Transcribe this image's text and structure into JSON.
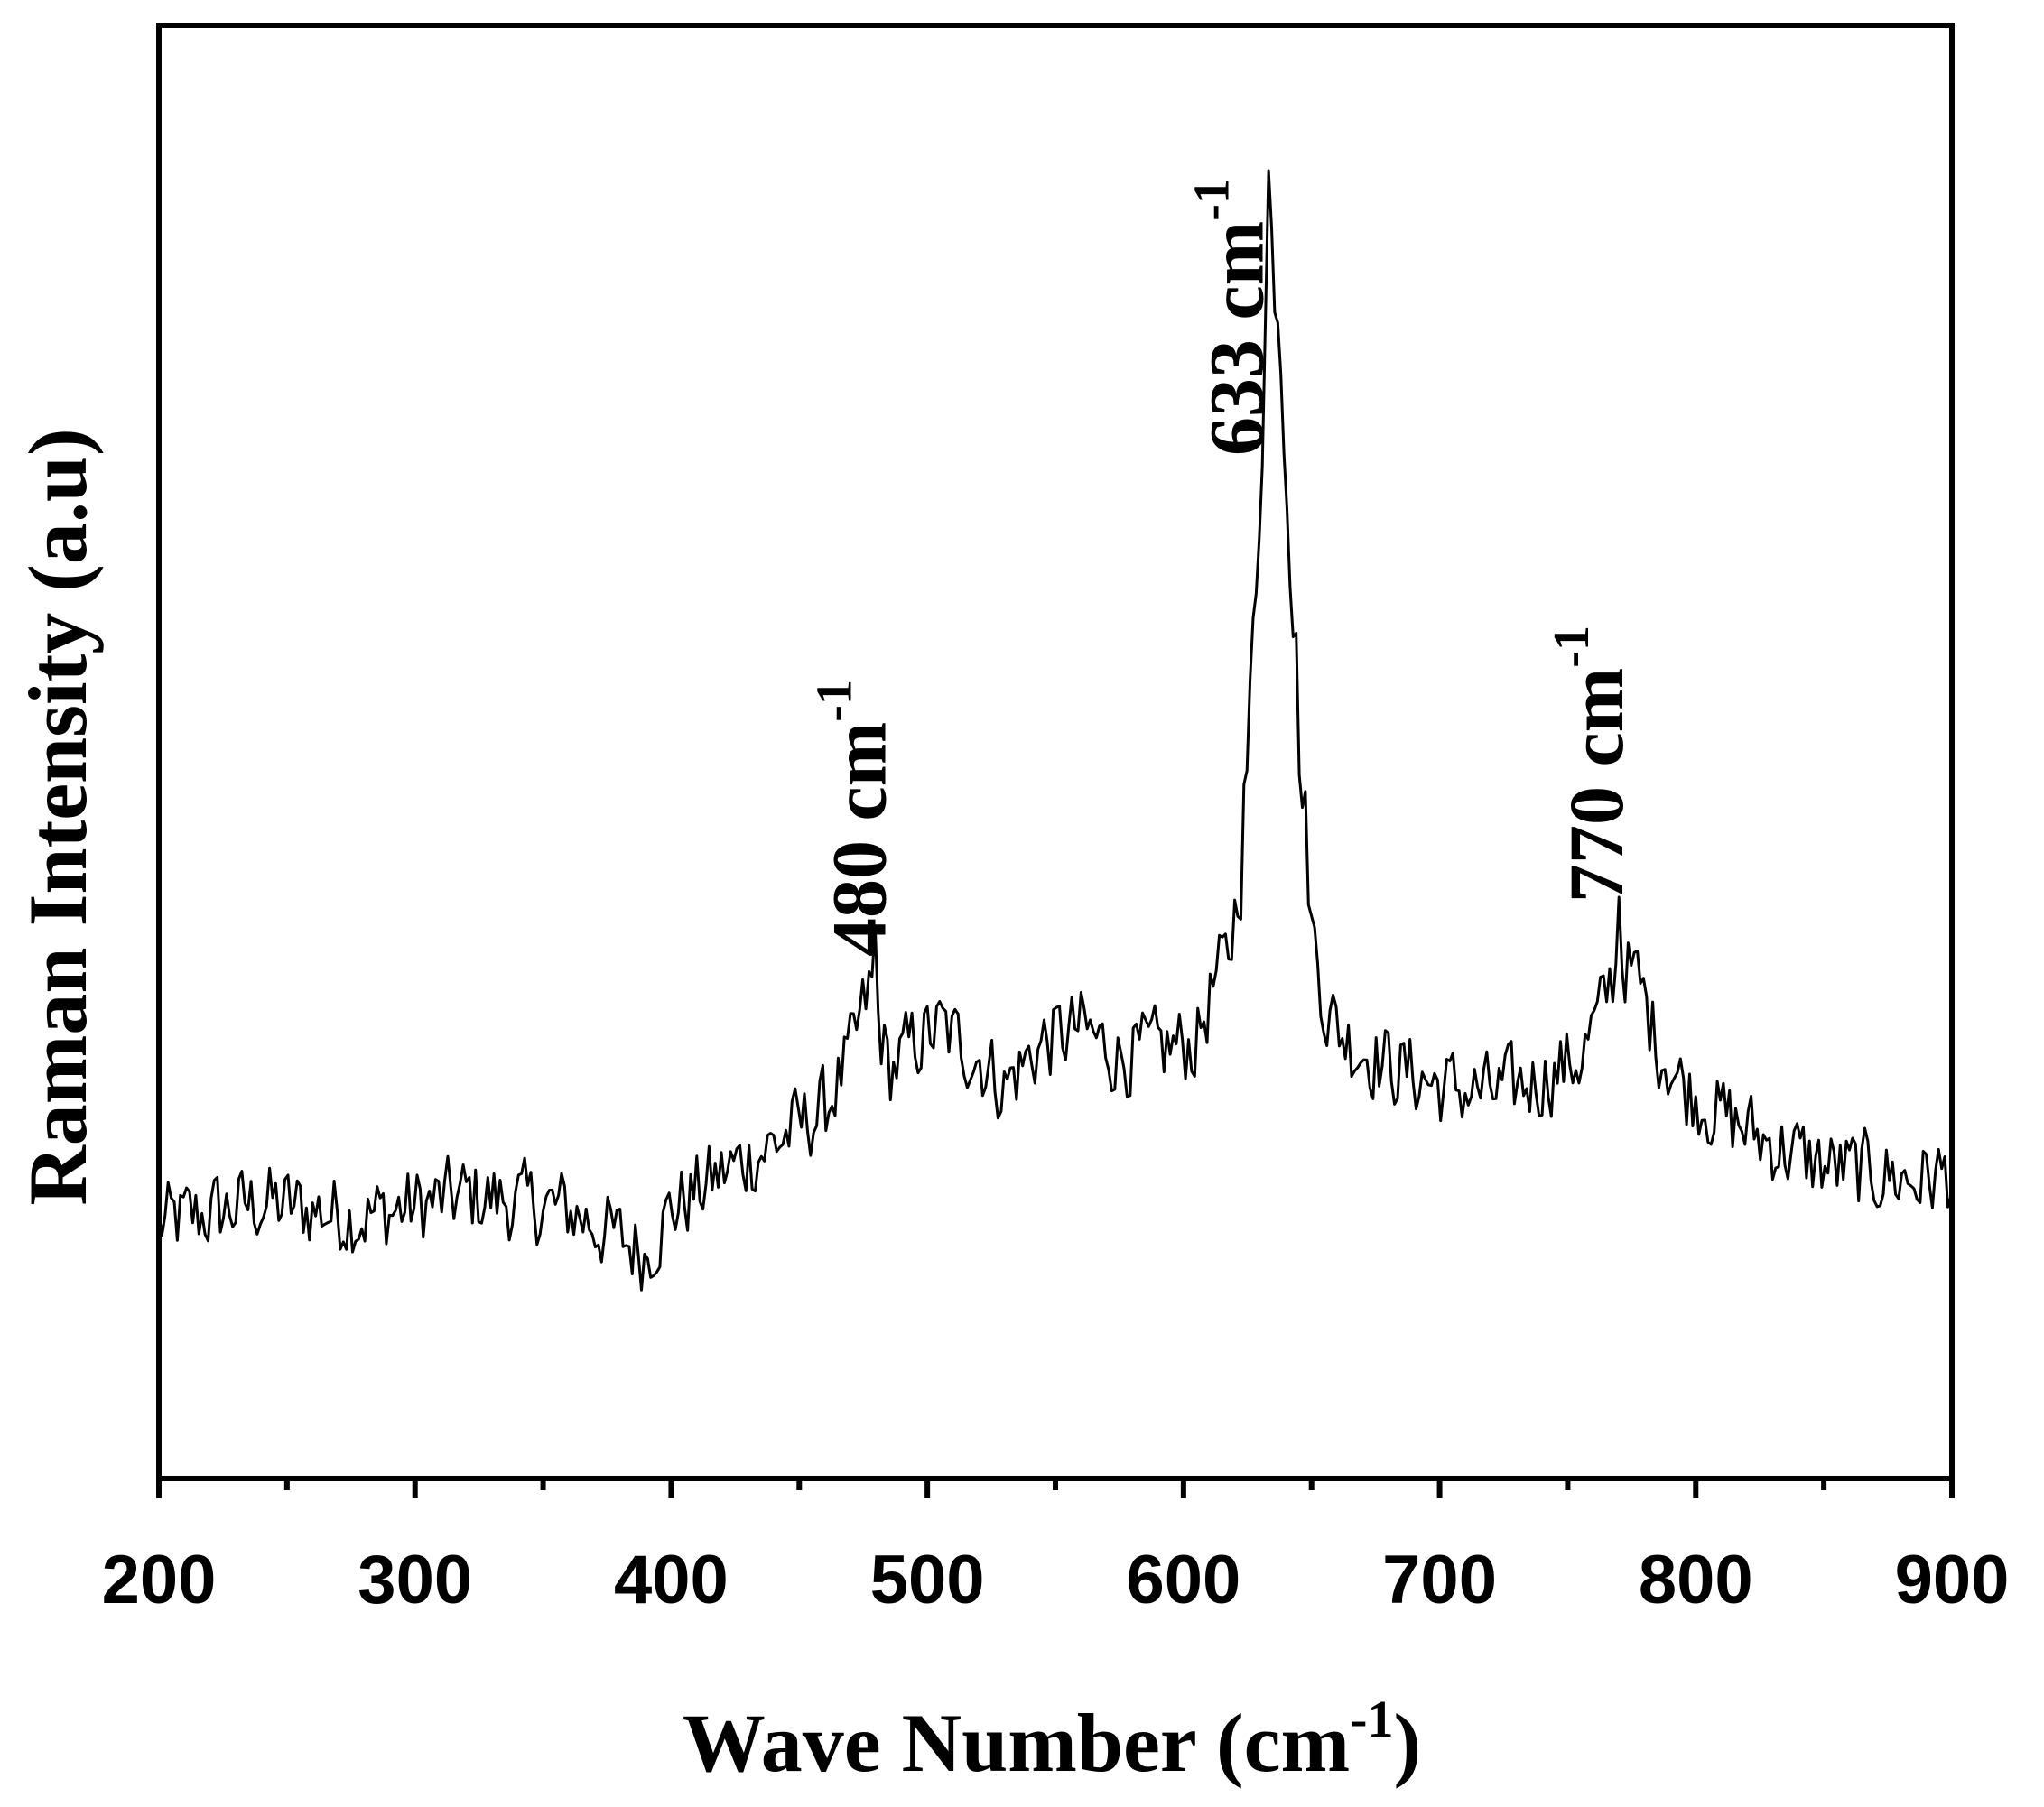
{
  "chart_data": {
    "type": "line",
    "title": "",
    "xlabel_main": "Wave Number (cm",
    "xlabel_sup": "-1",
    "xlabel_close": ")",
    "ylabel": "Raman Intensity (a.u)",
    "xlim": [
      200,
      900
    ],
    "ylim": [
      0,
      100
    ],
    "xticks": [
      200,
      300,
      400,
      500,
      600,
      700,
      800,
      900
    ],
    "xtick_labels": [
      "200",
      "300",
      "400",
      "500",
      "600",
      "700",
      "800",
      "900"
    ],
    "y_ticks_shown": false,
    "grid": false,
    "legend": "none",
    "baseline_points": [
      [
        200,
        17.5
      ],
      [
        240,
        19
      ],
      [
        280,
        18
      ],
      [
        320,
        19.5
      ],
      [
        360,
        18.5
      ],
      [
        380,
        16.5
      ],
      [
        390,
        15.5
      ],
      [
        400,
        18.5
      ],
      [
        420,
        21
      ],
      [
        440,
        23
      ],
      [
        460,
        25.5
      ],
      [
        470,
        29
      ],
      [
        478,
        34
      ],
      [
        485,
        28
      ],
      [
        495,
        30
      ],
      [
        505,
        31
      ],
      [
        520,
        29
      ],
      [
        530,
        27
      ],
      [
        545,
        30
      ],
      [
        560,
        31
      ],
      [
        575,
        29
      ],
      [
        590,
        29.5
      ],
      [
        605,
        30
      ],
      [
        612,
        34
      ],
      [
        618,
        36
      ],
      [
        622,
        42
      ],
      [
        626,
        52
      ],
      [
        629,
        65
      ],
      [
        632,
        80
      ],
      [
        634,
        85
      ],
      [
        637,
        82
      ],
      [
        640,
        72
      ],
      [
        643,
        60
      ],
      [
        646,
        48
      ],
      [
        650,
        38
      ],
      [
        656,
        32
      ],
      [
        665,
        30
      ],
      [
        680,
        28.5
      ],
      [
        700,
        27
      ],
      [
        720,
        26.5
      ],
      [
        740,
        27.5
      ],
      [
        755,
        29
      ],
      [
        763,
        32
      ],
      [
        770,
        36
      ],
      [
        778,
        34
      ],
      [
        785,
        30
      ],
      [
        795,
        27
      ],
      [
        810,
        25
      ],
      [
        830,
        23
      ],
      [
        850,
        21.5
      ],
      [
        870,
        21
      ],
      [
        885,
        20.5
      ],
      [
        900,
        21
      ]
    ],
    "peaks": [
      {
        "x": 480,
        "y": 38
      },
      {
        "x": 633,
        "y": 90
      },
      {
        "x": 770,
        "y": 40
      }
    ],
    "noise_amplitude": 3.5,
    "annotations": [
      {
        "x": 480,
        "number": "480 cm",
        "sup": "-1"
      },
      {
        "x": 633,
        "number": "633 cm",
        "sup": "-1"
      },
      {
        "x": 770,
        "number": "770 cm",
        "sup": "-1"
      }
    ]
  }
}
